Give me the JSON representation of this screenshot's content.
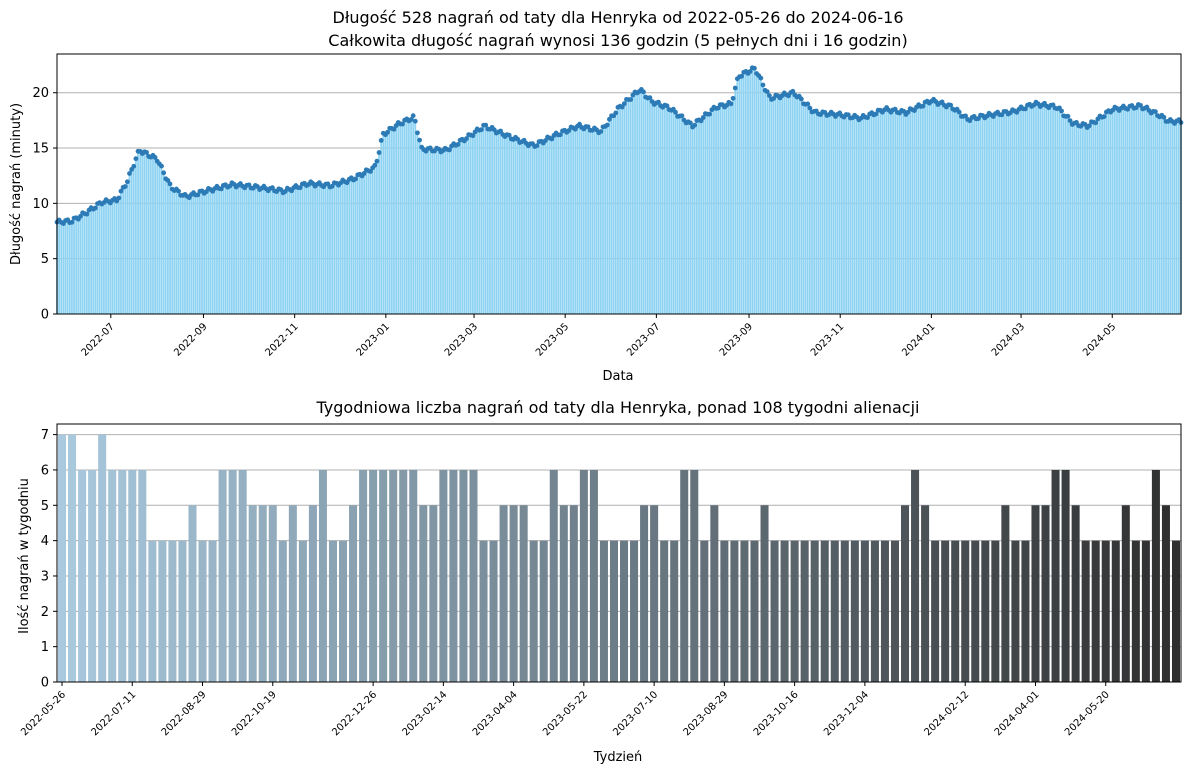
{
  "chart_data": [
    {
      "type": "bar",
      "title_line1": "Długość 528 nagrań od taty dla Henryka od 2022-05-26 do 2024-06-16",
      "title_line2": "Całkowita długość nagrań wynosi 136 godzin (5 pełnych dni i 16 godzin)",
      "xlabel": "Data",
      "ylabel": "Długość nagrań (minuty)",
      "ylim": [
        0,
        23.5
      ],
      "yticks": [
        "0",
        "5",
        "10",
        "15",
        "20"
      ],
      "xlim": [
        "2022-05-26",
        "2024-06-16"
      ],
      "xticks": [
        "2022-07",
        "2022-09",
        "2022-11",
        "2023-01",
        "2023-03",
        "2023-05",
        "2023-07",
        "2023-09",
        "2023-11",
        "2024-01",
        "2024-03",
        "2024-05"
      ],
      "grid": "y",
      "bar_color": "#8fd3f3",
      "marker_color": "#2c7bb6",
      "recordings_total": 528,
      "x_start": "2022-05-26",
      "x_end": "2024-06-16",
      "y_profile": [
        [
          "2022-05-26",
          8.3
        ],
        [
          "2022-06-05",
          8.4
        ],
        [
          "2022-06-15",
          9.2
        ],
        [
          "2022-06-25",
          10.1
        ],
        [
          "2022-07-05",
          10.3
        ],
        [
          "2022-07-12",
          12.0
        ],
        [
          "2022-07-20",
          14.8
        ],
        [
          "2022-08-01",
          14.0
        ],
        [
          "2022-08-10",
          11.5
        ],
        [
          "2022-08-20",
          10.6
        ],
        [
          "2022-09-05",
          11.2
        ],
        [
          "2022-09-20",
          11.7
        ],
        [
          "2022-10-10",
          11.4
        ],
        [
          "2022-10-25",
          11.1
        ],
        [
          "2022-11-10",
          11.8
        ],
        [
          "2022-11-25",
          11.6
        ],
        [
          "2022-12-10",
          12.2
        ],
        [
          "2022-12-25",
          13.3
        ],
        [
          "2022-12-30",
          16.2
        ],
        [
          "2023-01-10",
          17.2
        ],
        [
          "2023-01-20",
          17.8
        ],
        [
          "2023-01-25",
          14.9
        ],
        [
          "2023-02-10",
          14.8
        ],
        [
          "2023-02-25",
          16.0
        ],
        [
          "2023-03-08",
          17.0
        ],
        [
          "2023-03-25",
          16.0
        ],
        [
          "2023-04-10",
          15.2
        ],
        [
          "2023-04-25",
          16.2
        ],
        [
          "2023-05-10",
          17.0
        ],
        [
          "2023-05-25",
          16.5
        ],
        [
          "2023-06-05",
          18.5
        ],
        [
          "2023-06-20",
          20.3
        ],
        [
          "2023-06-28",
          19.2
        ],
        [
          "2023-07-10",
          18.6
        ],
        [
          "2023-07-25",
          17.0
        ],
        [
          "2023-08-10",
          18.7
        ],
        [
          "2023-08-20",
          19.0
        ],
        [
          "2023-08-25",
          21.5
        ],
        [
          "2023-09-05",
          22.2
        ],
        [
          "2023-09-15",
          19.5
        ],
        [
          "2023-10-01",
          20.0
        ],
        [
          "2023-10-15",
          18.2
        ],
        [
          "2023-11-01",
          18.0
        ],
        [
          "2023-11-15",
          17.7
        ],
        [
          "2023-12-01",
          18.5
        ],
        [
          "2023-12-15",
          18.2
        ],
        [
          "2024-01-01",
          19.3
        ],
        [
          "2024-01-15",
          18.7
        ],
        [
          "2024-01-25",
          17.6
        ],
        [
          "2024-02-10",
          18.0
        ],
        [
          "2024-02-25",
          18.3
        ],
        [
          "2024-03-10",
          19.0
        ],
        [
          "2024-03-25",
          18.7
        ],
        [
          "2024-04-05",
          17.2
        ],
        [
          "2024-04-15",
          17.0
        ],
        [
          "2024-05-01",
          18.5
        ],
        [
          "2024-05-20",
          18.8
        ],
        [
          "2024-06-01",
          18.0
        ],
        [
          "2024-06-08",
          17.4
        ],
        [
          "2024-06-16",
          17.4
        ]
      ]
    },
    {
      "type": "bar",
      "title": "Tygodniowa liczba nagrań od taty dla Henryka, ponad 108 tygodni alienacji",
      "xlabel": "Tydzień",
      "ylabel": "Ilość nagrań w tygodniu",
      "ylim": [
        0,
        7.3
      ],
      "yticks": [
        "0",
        "1",
        "2",
        "3",
        "4",
        "5",
        "6",
        "7"
      ],
      "grid": "y",
      "color_start": "#a9c9de",
      "color_end": "#2f2f2f",
      "xticks": [
        {
          "label": "2022-05-26",
          "index": 0
        },
        {
          "label": "2022-07-11",
          "index": 7
        },
        {
          "label": "2022-08-29",
          "index": 14
        },
        {
          "label": "2022-10-19",
          "index": 21
        },
        {
          "label": "2022-12-26",
          "index": 31
        },
        {
          "label": "2023-02-14",
          "index": 38
        },
        {
          "label": "2023-04-04",
          "index": 45
        },
        {
          "label": "2023-05-22",
          "index": 52
        },
        {
          "label": "2023-07-10",
          "index": 59
        },
        {
          "label": "2023-08-29",
          "index": 66
        },
        {
          "label": "2023-10-16",
          "index": 73
        },
        {
          "label": "2023-12-04",
          "index": 80
        },
        {
          "label": "2024-02-12",
          "index": 90
        },
        {
          "label": "2024-04-01",
          "index": 97
        },
        {
          "label": "2024-05-20",
          "index": 104
        }
      ],
      "values": [
        7,
        7,
        6,
        6,
        7,
        6,
        6,
        6,
        6,
        4,
        4,
        4,
        4,
        5,
        4,
        4,
        6,
        6,
        6,
        5,
        5,
        5,
        4,
        5,
        4,
        5,
        6,
        4,
        4,
        5,
        6,
        6,
        6,
        6,
        6,
        6,
        5,
        5,
        6,
        6,
        6,
        6,
        4,
        4,
        5,
        5,
        5,
        4,
        4,
        6,
        5,
        5,
        6,
        6,
        4,
        4,
        4,
        4,
        5,
        5,
        4,
        4,
        6,
        6,
        4,
        5,
        4,
        4,
        4,
        4,
        5,
        4,
        4,
        4,
        4,
        4,
        4,
        4,
        4,
        4,
        4,
        4,
        4,
        4,
        5,
        6,
        5,
        4,
        4,
        4,
        4,
        4,
        4,
        4,
        5,
        4,
        4,
        5,
        5,
        6,
        6,
        5,
        4,
        4,
        4,
        4,
        5,
        4,
        4,
        6,
        5,
        4
      ]
    }
  ]
}
